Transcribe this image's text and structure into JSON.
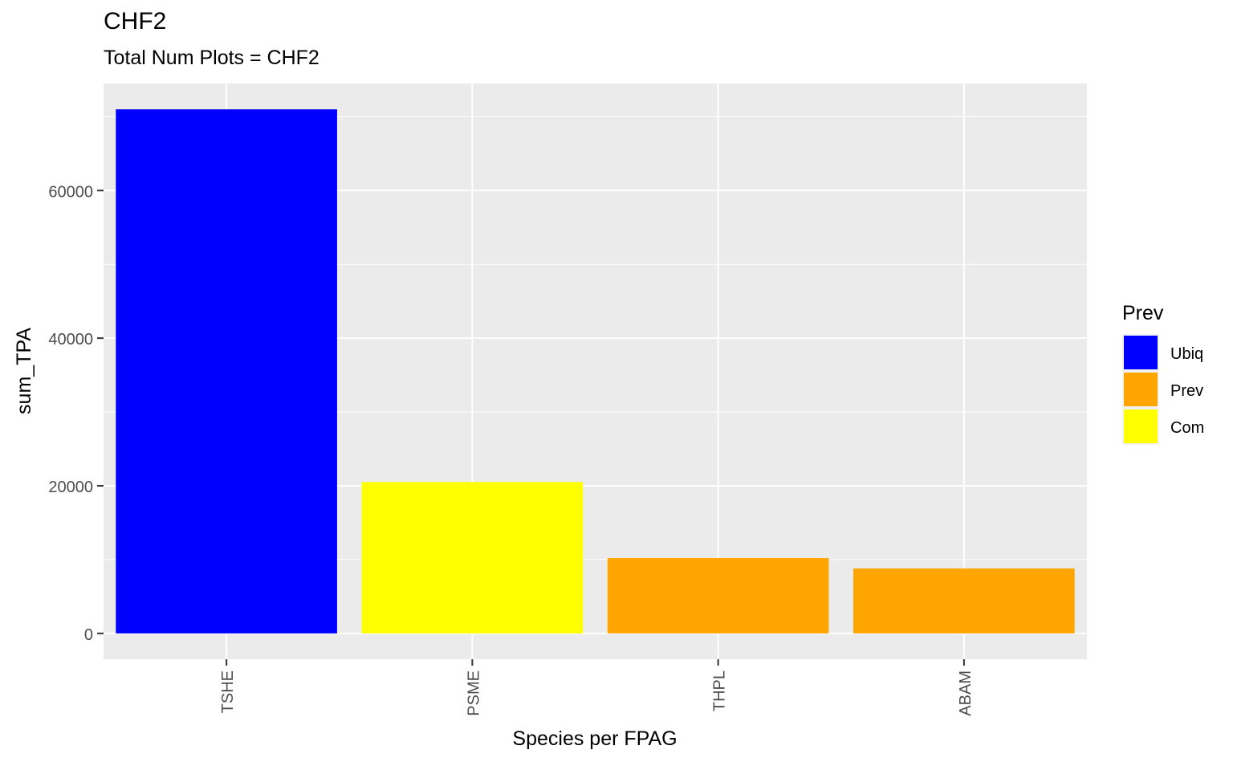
{
  "chart_data": {
    "type": "bar",
    "title": "CHF2",
    "subtitle": "Total Num Plots = CHF2",
    "xlabel": "Species per FPAG",
    "ylabel": "sum_TPA",
    "categories": [
      "TSHE",
      "PSME",
      "THPL",
      "ABAM"
    ],
    "values": [
      71000,
      20500,
      10200,
      8800
    ],
    "fill_group": [
      "Ubiq",
      "Com",
      "Prev",
      "Prev"
    ],
    "ylim": [
      -3500,
      74500
    ],
    "y_ticks": [
      0,
      20000,
      40000,
      60000
    ],
    "y_tick_labels": [
      "0",
      "20000",
      "40000",
      "60000"
    ],
    "y_minor_ticks": [
      10000,
      30000,
      50000,
      70000
    ],
    "grid": true,
    "x_tick_label_rotation": "vertical",
    "legend": {
      "title": "Prev",
      "placement": "right",
      "entries": [
        {
          "label": "Ubiq",
          "color": "#0000ff"
        },
        {
          "label": "Prev",
          "color": "#ffa500"
        },
        {
          "label": "Com",
          "color": "#ffff00"
        }
      ]
    },
    "colors": {
      "panel_background": "#ebebeb",
      "grid": "#ffffff",
      "axis_text": "#4d4d4d",
      "ticks": "#333333"
    }
  }
}
